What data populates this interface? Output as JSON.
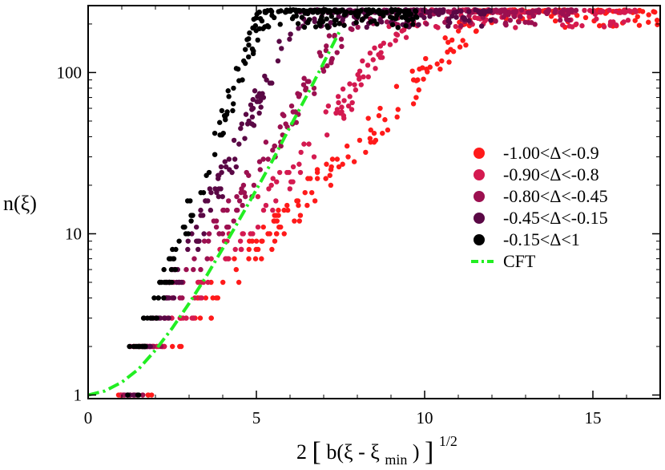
{
  "chart_data": {
    "type": "scatter",
    "title": "",
    "xlabel": "2[b(ξ - ξ_min)]^1/2",
    "xlabel_parts": {
      "prefix": "2",
      "lbracket": "[",
      "inner_pre": "b(ξ - ξ",
      "sub": "min",
      "inner_post": ")",
      "rbracket": "]",
      "sup": "1/2"
    },
    "ylabel": "n(ξ)",
    "xlim": [
      0,
      17
    ],
    "ylim": [
      0.95,
      260
    ],
    "yscale": "log",
    "xticks": [
      0,
      5,
      10,
      15
    ],
    "xtick_labels": [
      "0",
      "5",
      "10",
      "15"
    ],
    "yticks": [
      1,
      10,
      100
    ],
    "ytick_labels": [
      "1",
      "10",
      "100"
    ],
    "grid": false,
    "legend_position": "right-center",
    "series": [
      {
        "name": "-1.00<Δ<-0.9",
        "color": "#ff1a1a",
        "marker": "circle",
        "slope": 0.6,
        "x_start": 0.9,
        "x_end": 17.0
      },
      {
        "name": "-0.90<Δ<-0.8",
        "color": "#d41a50",
        "marker": "circle",
        "slope": 0.75,
        "x_start": 0.95,
        "x_end": 16.3
      },
      {
        "name": "-0.80<Δ<-0.45",
        "color": "#9c1050",
        "marker": "circle",
        "slope": 0.95,
        "x_start": 1.0,
        "x_end": 14.5
      },
      {
        "name": "-0.45<Δ<-0.15",
        "color": "#5a0845",
        "marker": "circle",
        "slope": 1.25,
        "x_start": 1.05,
        "x_end": 12.0
      },
      {
        "name": "-0.15<Δ<1",
        "color": "#000000",
        "marker": "circle",
        "slope": 1.6,
        "x_start": 1.1,
        "x_end": 9.8
      }
    ],
    "cft_curve": {
      "name": "CFT",
      "color": "#22ee22",
      "style": "dash-dot",
      "formula": "n = cosh(x) style growth, n(0)=1",
      "x": [
        0,
        0.5,
        1,
        1.5,
        2,
        2.5,
        3,
        3.5,
        4,
        4.5,
        5,
        5.5,
        6,
        6.5,
        7,
        7.5
      ],
      "y": [
        1.0,
        1.06,
        1.2,
        1.45,
        1.9,
        2.6,
        3.7,
        5.4,
        8.1,
        12.3,
        18.8,
        29,
        46,
        72,
        115,
        185
      ]
    }
  }
}
